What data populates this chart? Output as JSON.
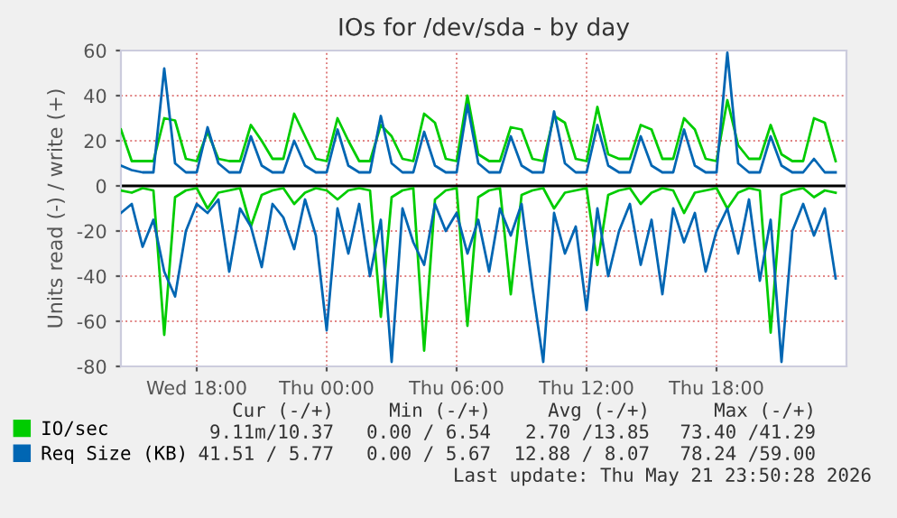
{
  "chart_data": {
    "type": "line",
    "title": "IOs for /dev/sda - by day",
    "ylabel": "Units read (-) / write (+)",
    "x": [
      "2026-05-20T14:30",
      "2026-05-20T15:00",
      "2026-05-20T15:30",
      "2026-05-20T16:00",
      "2026-05-20T16:30",
      "2026-05-20T17:00",
      "2026-05-20T17:30",
      "2026-05-20T18:00",
      "2026-05-20T18:30",
      "2026-05-20T19:00",
      "2026-05-20T19:30",
      "2026-05-20T20:00",
      "2026-05-20T20:30",
      "2026-05-20T21:00",
      "2026-05-20T21:30",
      "2026-05-20T22:00",
      "2026-05-20T22:30",
      "2026-05-20T23:00",
      "2026-05-20T23:30",
      "2026-05-21T00:00",
      "2026-05-21T00:30",
      "2026-05-21T01:00",
      "2026-05-21T01:30",
      "2026-05-21T02:00",
      "2026-05-21T02:30",
      "2026-05-21T03:00",
      "2026-05-21T03:30",
      "2026-05-21T04:00",
      "2026-05-21T04:30",
      "2026-05-21T05:00",
      "2026-05-21T05:30",
      "2026-05-21T06:00",
      "2026-05-21T06:30",
      "2026-05-21T07:00",
      "2026-05-21T07:30",
      "2026-05-21T08:00",
      "2026-05-21T08:30",
      "2026-05-21T09:00",
      "2026-05-21T09:30",
      "2026-05-21T10:00",
      "2026-05-21T10:30",
      "2026-05-21T11:00",
      "2026-05-21T11:30",
      "2026-05-21T12:00",
      "2026-05-21T12:30",
      "2026-05-21T13:00",
      "2026-05-21T13:30",
      "2026-05-21T14:00",
      "2026-05-21T14:30",
      "2026-05-21T15:00",
      "2026-05-21T15:30",
      "2026-05-21T16:00",
      "2026-05-21T16:30",
      "2026-05-21T17:00",
      "2026-05-21T17:30",
      "2026-05-21T18:00",
      "2026-05-21T18:30",
      "2026-05-21T19:00",
      "2026-05-21T19:30",
      "2026-05-21T20:00",
      "2026-05-21T20:30",
      "2026-05-21T21:00",
      "2026-05-21T21:30",
      "2026-05-21T22:00",
      "2026-05-21T22:30",
      "2026-05-21T23:00",
      "2026-05-21T23:30"
    ],
    "series": [
      {
        "name": "IO/sec",
        "color": "#00cc00",
        "values": [
          25,
          11,
          11,
          11,
          30,
          29,
          12,
          11,
          24,
          12,
          11,
          11,
          27,
          20,
          12,
          12,
          32,
          22,
          12,
          11,
          30,
          20,
          11,
          11,
          27,
          22,
          12,
          11,
          32,
          28,
          12,
          11,
          40,
          14,
          11,
          11,
          26,
          25,
          12,
          11,
          31,
          28,
          12,
          11,
          35,
          14,
          12,
          12,
          27,
          25,
          12,
          12,
          30,
          25,
          12,
          11,
          38,
          18,
          12,
          12,
          27,
          14,
          11,
          11,
          30,
          28,
          11
        ]
      },
      {
        "color": "#00cc00",
        "values": [
          -2,
          -3,
          -1,
          -2,
          -66,
          -5,
          -2,
          -1,
          -10,
          -3,
          -2,
          -1,
          -18,
          -4,
          -2,
          -1,
          -8,
          -3,
          -1,
          -2,
          -6,
          -2,
          -1,
          -2,
          -58,
          -5,
          -2,
          -1,
          -73,
          -6,
          -2,
          -1,
          -62,
          -5,
          -2,
          -1,
          -48,
          -4,
          -2,
          -1,
          -10,
          -3,
          -2,
          -1,
          -35,
          -4,
          -2,
          -1,
          -8,
          -3,
          -1,
          -2,
          -12,
          -3,
          -2,
          -1,
          -10,
          -3,
          -1,
          -2,
          -65,
          -4,
          -2,
          -1,
          -5,
          -2,
          -3
        ]
      },
      {
        "name": "Req Size (KB)",
        "color": "#0066b3",
        "values": [
          9,
          7,
          6,
          6,
          52,
          10,
          6,
          6,
          26,
          10,
          6,
          6,
          22,
          9,
          6,
          6,
          20,
          9,
          6,
          6,
          25,
          9,
          6,
          6,
          31,
          10,
          6,
          6,
          24,
          9,
          6,
          6,
          36,
          10,
          6,
          6,
          22,
          9,
          6,
          6,
          33,
          10,
          6,
          6,
          27,
          9,
          6,
          6,
          22,
          9,
          6,
          6,
          25,
          9,
          6,
          6,
          59,
          10,
          6,
          6,
          22,
          9,
          6,
          6,
          12,
          6,
          6
        ]
      },
      {
        "color": "#0066b3",
        "values": [
          -12,
          -8,
          -27,
          -15,
          -38,
          -49,
          -20,
          -8,
          -12,
          -6,
          -38,
          -10,
          -18,
          -36,
          -8,
          -14,
          -28,
          -6,
          -22,
          -64,
          -10,
          -30,
          -8,
          -40,
          -15,
          -78,
          -10,
          -25,
          -35,
          -8,
          -20,
          -12,
          -30,
          -15,
          -38,
          -10,
          -22,
          -8,
          -45,
          -78,
          -12,
          -30,
          -18,
          -55,
          -10,
          -40,
          -20,
          -8,
          -35,
          -15,
          -48,
          -10,
          -25,
          -12,
          -38,
          -20,
          -10,
          -30,
          -6,
          -42,
          -15,
          -78,
          -20,
          -8,
          -22,
          -10,
          -41
        ]
      }
    ],
    "xlim": [
      "2026-05-20T14:30",
      "2026-05-22T00:10"
    ],
    "ylim": [
      -80,
      60
    ],
    "xticks": [
      {
        "value": "2026-05-20T18:00",
        "label": "Wed 18:00"
      },
      {
        "value": "2026-05-21T00:00",
        "label": "Thu 00:00"
      },
      {
        "value": "2026-05-21T06:00",
        "label": "Thu 06:00"
      },
      {
        "value": "2026-05-21T12:00",
        "label": "Thu 12:00"
      },
      {
        "value": "2026-05-21T18:00",
        "label": "Thu 18:00"
      }
    ],
    "yticks": [
      -80,
      -60,
      -40,
      -20,
      0,
      20,
      40,
      60
    ],
    "ref_lines": [
      {
        "axis": "y",
        "value": 0,
        "color": "#000000"
      }
    ],
    "grid": true,
    "legend": "bottom left",
    "marker": "none",
    "line_style": "solid",
    "annotations": [
      "Cur (-/+)",
      "Min (-/+)",
      "Avg (-/+)",
      "Max (-/+)",
      "9.11m/10.37",
      "0.00 / 6.54",
      "2.70 /13.85",
      "73.40 /41.29",
      "41.51 / 5.77",
      "0.00 / 5.67",
      "12.88 / 8.07",
      "78.24 /59.00",
      "Last update: Thu May 21 23:50:28 2026"
    ]
  }
}
